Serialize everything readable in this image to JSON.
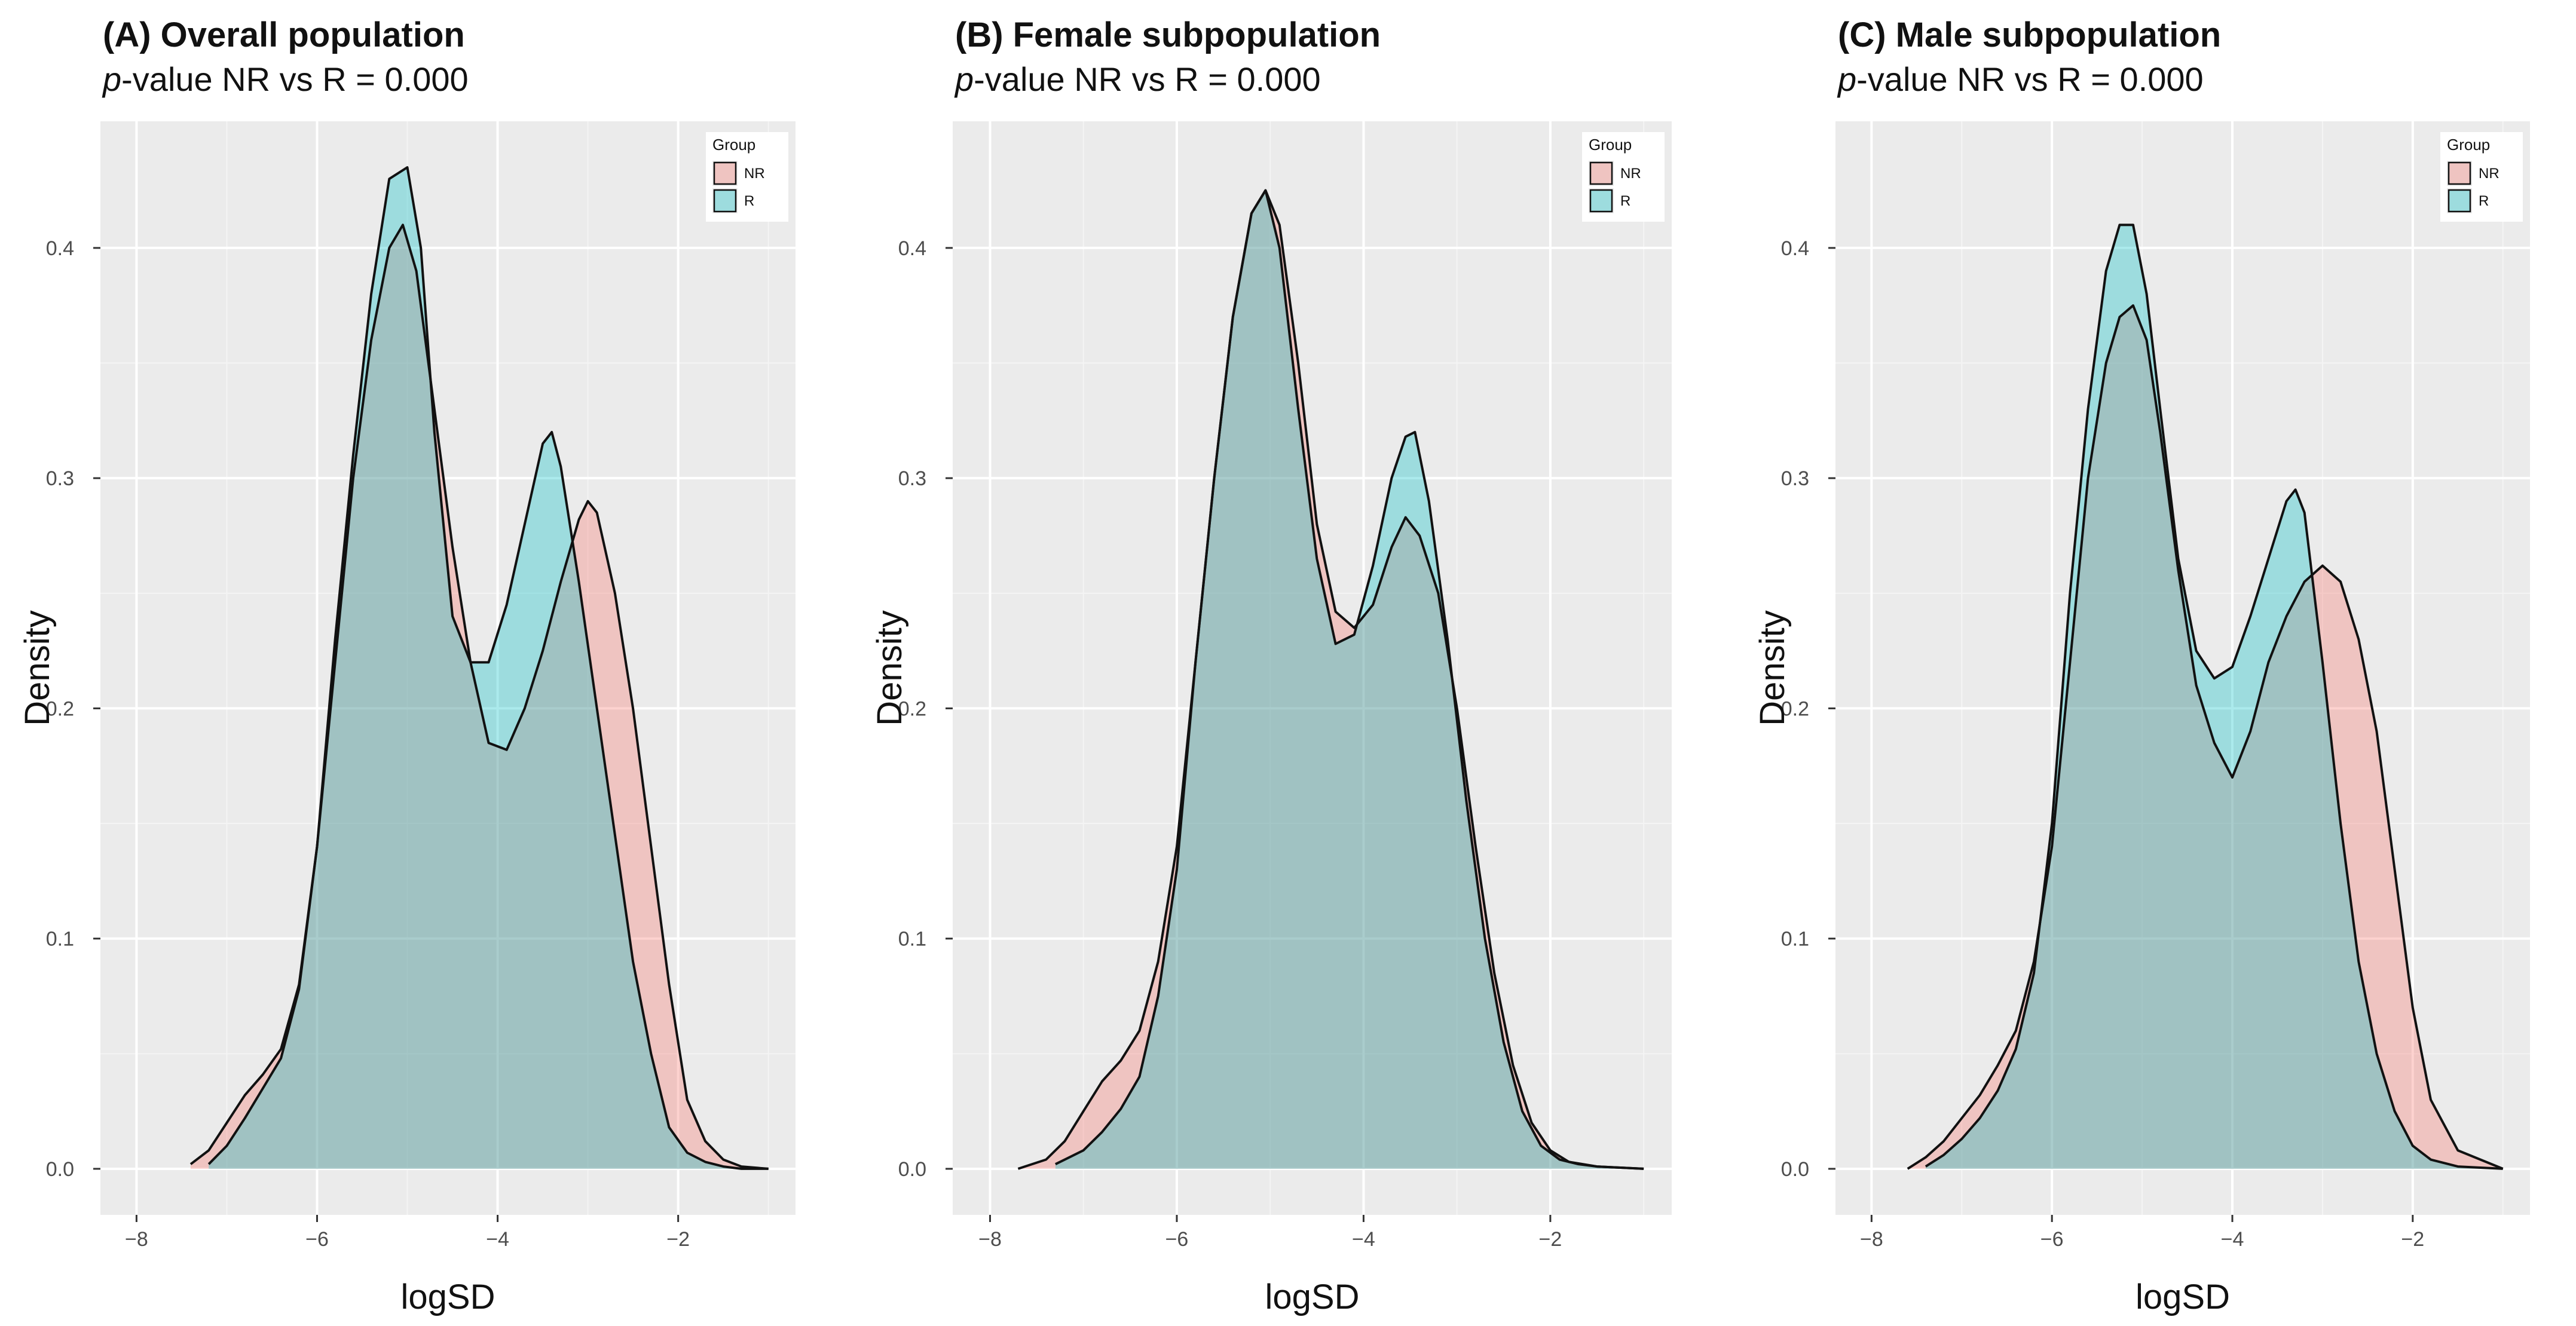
{
  "colors": {
    "panel_bg": "#EBEBEB",
    "grid_major": "#FFFFFF",
    "grid_minor": "#F4F4F4",
    "nr_fill": "#F8766D",
    "r_fill": "#00BFC4",
    "fill_opacity": 0.33,
    "outline": "#111111",
    "tick_label": "#4D4D4D",
    "text": "#111111"
  },
  "chart_data": [
    {
      "type": "area",
      "subtype": "density",
      "title": "(A) Overall population",
      "subtitle_italic": "p",
      "subtitle_rest": "-value NR vs R = 0.000",
      "xlabel": "logSD",
      "ylabel": "Density",
      "xlim": [
        -8.4,
        -0.7
      ],
      "ylim": [
        -0.02,
        0.455
      ],
      "xticks": [
        -8,
        -6,
        -4,
        -2
      ],
      "yticks": [
        0.0,
        0.1,
        0.2,
        0.3,
        0.4
      ],
      "xtick_labels": [
        "−8",
        "−6",
        "−4",
        "−2"
      ],
      "ytick_labels": [
        "0.0",
        "0.1",
        "0.2",
        "0.3",
        "0.4"
      ],
      "grid": true,
      "legend": {
        "title": "Group",
        "position": "top-right",
        "entries": [
          "NR",
          "R"
        ]
      },
      "series": [
        {
          "name": "NR",
          "x": [
            -7.4,
            -7.2,
            -7.0,
            -6.8,
            -6.6,
            -6.4,
            -6.2,
            -6.0,
            -5.8,
            -5.6,
            -5.4,
            -5.2,
            -5.05,
            -4.9,
            -4.7,
            -4.5,
            -4.3,
            -4.1,
            -3.9,
            -3.7,
            -3.5,
            -3.3,
            -3.1,
            -3.0,
            -2.9,
            -2.7,
            -2.5,
            -2.3,
            -2.1,
            -1.9,
            -1.7,
            -1.5,
            -1.3,
            -1.0
          ],
          "y": [
            0.002,
            0.008,
            0.02,
            0.032,
            0.041,
            0.052,
            0.08,
            0.14,
            0.22,
            0.3,
            0.36,
            0.4,
            0.41,
            0.39,
            0.33,
            0.27,
            0.22,
            0.185,
            0.182,
            0.2,
            0.225,
            0.255,
            0.282,
            0.29,
            0.285,
            0.25,
            0.2,
            0.14,
            0.08,
            0.03,
            0.012,
            0.004,
            0.001,
            0.0
          ]
        },
        {
          "name": "R",
          "x": [
            -7.2,
            -7.0,
            -6.8,
            -6.6,
            -6.4,
            -6.2,
            -6.0,
            -5.8,
            -5.6,
            -5.4,
            -5.2,
            -5.0,
            -4.85,
            -4.7,
            -4.5,
            -4.3,
            -4.1,
            -3.9,
            -3.7,
            -3.5,
            -3.4,
            -3.3,
            -3.1,
            -2.9,
            -2.7,
            -2.5,
            -2.3,
            -2.1,
            -1.9,
            -1.7,
            -1.5,
            -1.3,
            -1.0
          ],
          "y": [
            0.002,
            0.01,
            0.022,
            0.035,
            0.048,
            0.078,
            0.14,
            0.23,
            0.31,
            0.38,
            0.43,
            0.435,
            0.4,
            0.32,
            0.24,
            0.22,
            0.22,
            0.245,
            0.28,
            0.315,
            0.32,
            0.305,
            0.255,
            0.2,
            0.145,
            0.09,
            0.05,
            0.018,
            0.007,
            0.003,
            0.001,
            0.0,
            0.0
          ]
        }
      ]
    },
    {
      "type": "area",
      "subtype": "density",
      "title": "(B) Female subpopulation",
      "subtitle_italic": "p",
      "subtitle_rest": "-value NR vs R = 0.000",
      "xlabel": "logSD",
      "ylabel": "Density",
      "xlim": [
        -8.4,
        -0.7
      ],
      "ylim": [
        -0.02,
        0.455
      ],
      "xticks": [
        -8,
        -6,
        -4,
        -2
      ],
      "yticks": [
        0.0,
        0.1,
        0.2,
        0.3,
        0.4
      ],
      "xtick_labels": [
        "−8",
        "−6",
        "−4",
        "−2"
      ],
      "ytick_labels": [
        "0.0",
        "0.1",
        "0.2",
        "0.3",
        "0.4"
      ],
      "grid": true,
      "legend": {
        "title": "Group",
        "position": "top-right",
        "entries": [
          "NR",
          "R"
        ]
      },
      "series": [
        {
          "name": "NR",
          "x": [
            -7.7,
            -7.4,
            -7.2,
            -7.0,
            -6.8,
            -6.6,
            -6.4,
            -6.2,
            -6.0,
            -5.8,
            -5.6,
            -5.4,
            -5.2,
            -5.05,
            -4.9,
            -4.7,
            -4.5,
            -4.3,
            -4.1,
            -3.9,
            -3.7,
            -3.55,
            -3.4,
            -3.2,
            -3.0,
            -2.8,
            -2.6,
            -2.4,
            -2.2,
            -2.0,
            -1.8,
            -1.5,
            -1.0
          ],
          "y": [
            0.0,
            0.004,
            0.012,
            0.025,
            0.038,
            0.047,
            0.06,
            0.09,
            0.14,
            0.22,
            0.3,
            0.37,
            0.415,
            0.425,
            0.41,
            0.35,
            0.28,
            0.242,
            0.235,
            0.245,
            0.27,
            0.283,
            0.275,
            0.25,
            0.2,
            0.14,
            0.085,
            0.045,
            0.02,
            0.008,
            0.003,
            0.001,
            0.0
          ]
        },
        {
          "name": "R",
          "x": [
            -7.3,
            -7.0,
            -6.8,
            -6.6,
            -6.4,
            -6.2,
            -6.0,
            -5.8,
            -5.6,
            -5.4,
            -5.2,
            -5.05,
            -4.9,
            -4.7,
            -4.5,
            -4.3,
            -4.1,
            -3.9,
            -3.7,
            -3.55,
            -3.45,
            -3.3,
            -3.1,
            -2.9,
            -2.7,
            -2.5,
            -2.3,
            -2.1,
            -1.9,
            -1.7,
            -1.5,
            -1.0
          ],
          "y": [
            0.002,
            0.008,
            0.016,
            0.026,
            0.04,
            0.075,
            0.13,
            0.22,
            0.3,
            0.37,
            0.415,
            0.425,
            0.4,
            0.33,
            0.265,
            0.228,
            0.232,
            0.262,
            0.3,
            0.318,
            0.32,
            0.29,
            0.23,
            0.16,
            0.1,
            0.055,
            0.025,
            0.01,
            0.004,
            0.002,
            0.001,
            0.0
          ]
        }
      ]
    },
    {
      "type": "area",
      "subtype": "density",
      "title": "(C) Male subpopulation",
      "subtitle_italic": "p",
      "subtitle_rest": "-value NR vs R = 0.000",
      "xlabel": "logSD",
      "ylabel": "Density",
      "xlim": [
        -8.4,
        -0.7
      ],
      "ylim": [
        -0.02,
        0.455
      ],
      "xticks": [
        -8,
        -6,
        -4,
        -2
      ],
      "yticks": [
        0.0,
        0.1,
        0.2,
        0.3,
        0.4
      ],
      "xtick_labels": [
        "−8",
        "−6",
        "−4",
        "−2"
      ],
      "ytick_labels": [
        "0.0",
        "0.1",
        "0.2",
        "0.3",
        "0.4"
      ],
      "grid": true,
      "legend": {
        "title": "Group",
        "position": "top-right",
        "entries": [
          "NR",
          "R"
        ]
      },
      "series": [
        {
          "name": "NR",
          "x": [
            -7.6,
            -7.4,
            -7.2,
            -7.0,
            -6.8,
            -6.6,
            -6.4,
            -6.2,
            -6.0,
            -5.8,
            -5.6,
            -5.4,
            -5.25,
            -5.1,
            -4.95,
            -4.8,
            -4.6,
            -4.4,
            -4.2,
            -4.0,
            -3.8,
            -3.6,
            -3.4,
            -3.2,
            -3.0,
            -2.8,
            -2.6,
            -2.4,
            -2.2,
            -2.0,
            -1.8,
            -1.5,
            -1.0
          ],
          "y": [
            0.0,
            0.005,
            0.012,
            0.022,
            0.032,
            0.045,
            0.06,
            0.09,
            0.14,
            0.22,
            0.3,
            0.35,
            0.37,
            0.375,
            0.36,
            0.32,
            0.26,
            0.21,
            0.185,
            0.17,
            0.19,
            0.22,
            0.24,
            0.255,
            0.262,
            0.255,
            0.23,
            0.19,
            0.13,
            0.07,
            0.03,
            0.008,
            0.0
          ]
        },
        {
          "name": "R",
          "x": [
            -7.4,
            -7.2,
            -7.0,
            -6.8,
            -6.6,
            -6.4,
            -6.2,
            -6.0,
            -5.8,
            -5.6,
            -5.4,
            -5.25,
            -5.1,
            -4.95,
            -4.8,
            -4.6,
            -4.4,
            -4.2,
            -4.0,
            -3.8,
            -3.6,
            -3.4,
            -3.3,
            -3.2,
            -3.0,
            -2.8,
            -2.6,
            -2.4,
            -2.2,
            -2.0,
            -1.8,
            -1.5,
            -1.0
          ],
          "y": [
            0.001,
            0.006,
            0.013,
            0.022,
            0.034,
            0.052,
            0.085,
            0.15,
            0.25,
            0.33,
            0.39,
            0.41,
            0.41,
            0.38,
            0.33,
            0.265,
            0.225,
            0.213,
            0.218,
            0.24,
            0.265,
            0.29,
            0.295,
            0.285,
            0.22,
            0.15,
            0.09,
            0.05,
            0.025,
            0.01,
            0.004,
            0.001,
            0.0
          ]
        }
      ]
    }
  ]
}
